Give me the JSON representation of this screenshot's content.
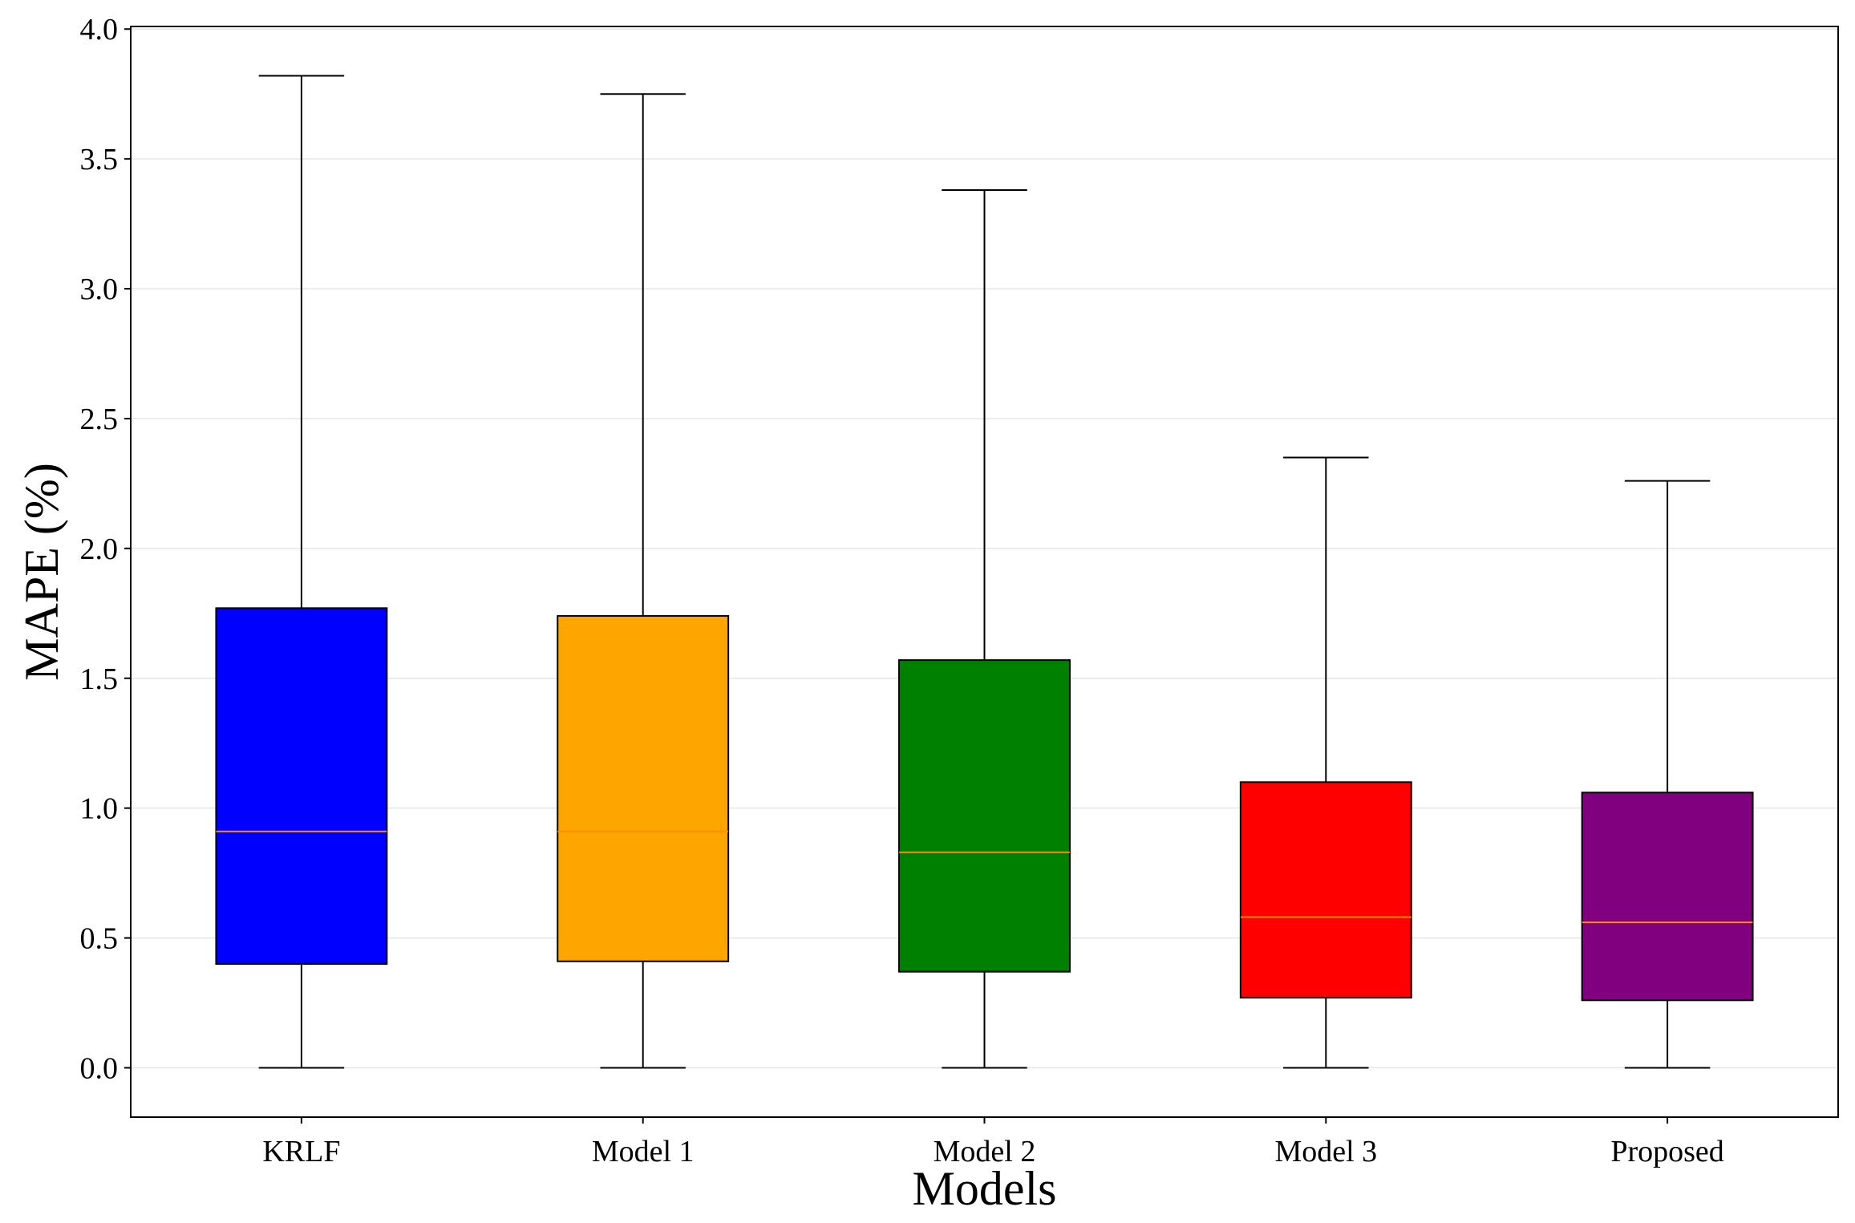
{
  "chart_data": {
    "type": "box",
    "xlabel": "Models",
    "ylabel": "MAPE (%)",
    "ylim": [
      -0.19,
      4.01
    ],
    "yticks": [
      0.0,
      0.5,
      1.0,
      1.5,
      2.0,
      2.5,
      3.0,
      3.5,
      4.0
    ],
    "ytick_labels": [
      "0.0",
      "0.5",
      "1.0",
      "1.5",
      "2.0",
      "2.5",
      "3.0",
      "3.5",
      "4.0"
    ],
    "grid": true,
    "categories": [
      "KRLF",
      "Model 1",
      "Model 2",
      "Model 3",
      "Proposed"
    ],
    "boxes": [
      {
        "name": "KRLF",
        "min": 0.0,
        "q1": 0.4,
        "median": 0.91,
        "q3": 1.77,
        "max": 3.82,
        "color": "#0000ff"
      },
      {
        "name": "Model 1",
        "min": 0.0,
        "q1": 0.41,
        "median": 0.91,
        "q3": 1.74,
        "max": 3.75,
        "color": "#ffa500"
      },
      {
        "name": "Model 2",
        "min": 0.0,
        "q1": 0.37,
        "median": 0.83,
        "q3": 1.57,
        "max": 3.38,
        "color": "#008000"
      },
      {
        "name": "Model 3",
        "min": 0.0,
        "q1": 0.27,
        "median": 0.58,
        "q3": 1.1,
        "max": 2.35,
        "color": "#ff0000"
      },
      {
        "name": "Proposed",
        "min": 0.0,
        "q1": 0.26,
        "median": 0.56,
        "q3": 1.06,
        "max": 2.26,
        "color": "#800080"
      }
    ],
    "median_color": "#ff8c00"
  }
}
